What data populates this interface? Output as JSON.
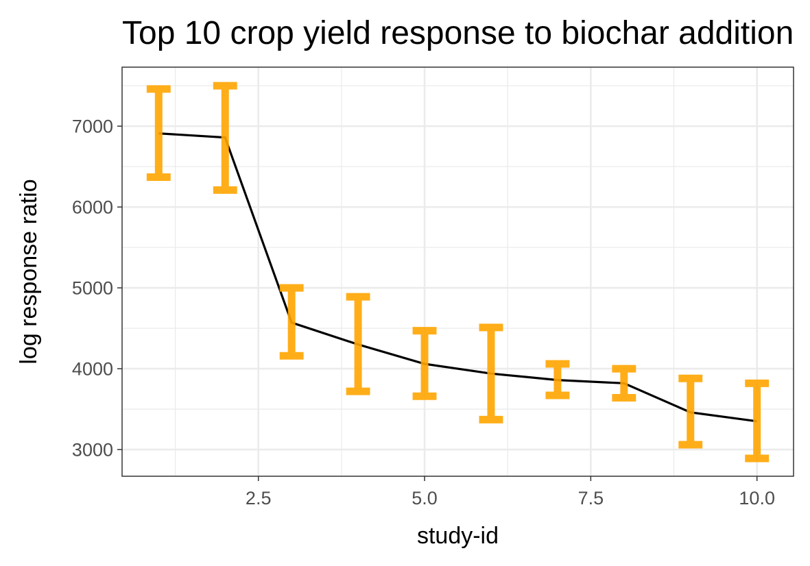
{
  "chart_data": {
    "type": "line",
    "title": "Top 10 crop yield response to biochar addition",
    "xlabel": "study-id",
    "ylabel": "log response ratio",
    "xlim": [
      0.45,
      10.55
    ],
    "ylim": [
      2670,
      7730
    ],
    "x_ticks": [
      2.5,
      5.0,
      7.5,
      10.0
    ],
    "x_tick_labels": [
      "2.5",
      "5.0",
      "7.5",
      "10.0"
    ],
    "y_ticks": [
      3000,
      4000,
      5000,
      6000,
      7000
    ],
    "y_tick_labels": [
      "3000",
      "4000",
      "5000",
      "6000",
      "7000"
    ],
    "grid": true,
    "line_color": "#000000",
    "errorbar_color": "#ffa500",
    "points": [
      {
        "x": 1,
        "y": 6910,
        "ymin": 6370,
        "ymax": 7460
      },
      {
        "x": 2,
        "y": 6860,
        "ymin": 6210,
        "ymax": 7500
      },
      {
        "x": 3,
        "y": 4570,
        "ymin": 4160,
        "ymax": 5000
      },
      {
        "x": 4,
        "y": 4300,
        "ymin": 3720,
        "ymax": 4890
      },
      {
        "x": 5,
        "y": 4060,
        "ymin": 3660,
        "ymax": 4470
      },
      {
        "x": 6,
        "y": 3940,
        "ymin": 3370,
        "ymax": 4510
      },
      {
        "x": 7,
        "y": 3860,
        "ymin": 3670,
        "ymax": 4060
      },
      {
        "x": 8,
        "y": 3820,
        "ymin": 3640,
        "ymax": 4000
      },
      {
        "x": 9,
        "y": 3460,
        "ymin": 3060,
        "ymax": 3880
      },
      {
        "x": 10,
        "y": 3350,
        "ymin": 2890,
        "ymax": 3820
      }
    ]
  }
}
